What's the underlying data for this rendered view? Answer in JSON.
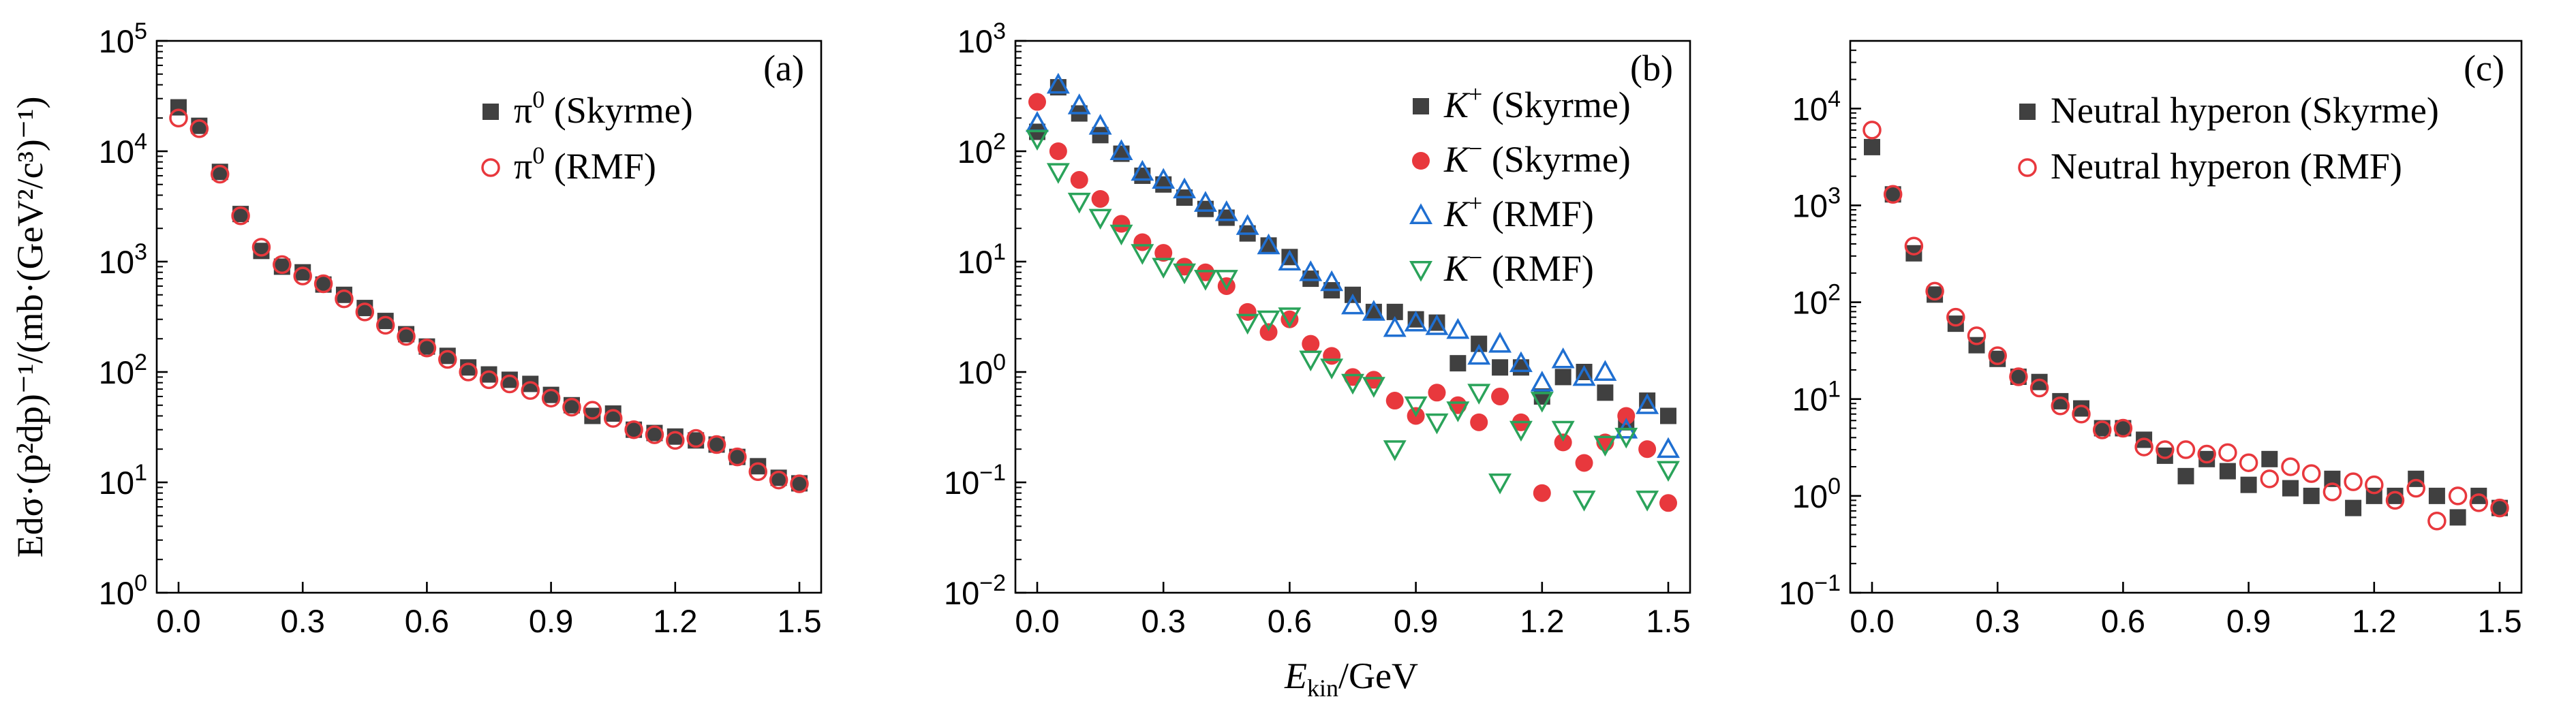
{
  "shared_xlabel": {
    "main": "E",
    "sub": "kin",
    "rest": "/GeV"
  },
  "ylabel_a": "Edσ·(p²dp)⁻¹/(mb·(GeV²/c³)⁻¹)",
  "colors": {
    "gray": "#404040",
    "red": "#e8383d",
    "blue": "#1f6fd1",
    "green": "#2aa35a"
  },
  "chart_data": [
    {
      "type": "scatter",
      "panel_label": "(a)",
      "yscale": "log",
      "xlim": [
        0.0,
        1.5
      ],
      "ylim": [
        1,
        100000
      ],
      "xticks": [
        "0.0",
        "0.3",
        "0.6",
        "0.9",
        "1.2",
        "1.5"
      ],
      "yticks": [
        {
          "base": "10",
          "exp": "0"
        },
        {
          "base": "10",
          "exp": "1"
        },
        {
          "base": "10",
          "exp": "2"
        },
        {
          "base": "10",
          "exp": "3"
        },
        {
          "base": "10",
          "exp": "4"
        },
        {
          "base": "10",
          "exp": "5"
        }
      ],
      "legend_position": "top-right",
      "x": [
        0.0,
        0.05,
        0.1,
        0.15,
        0.2,
        0.25,
        0.3,
        0.35,
        0.4,
        0.45,
        0.5,
        0.55,
        0.6,
        0.65,
        0.7,
        0.75,
        0.8,
        0.85,
        0.9,
        0.95,
        1.0,
        1.05,
        1.1,
        1.15,
        1.2,
        1.25,
        1.3,
        1.35,
        1.4,
        1.45,
        1.5
      ],
      "series": [
        {
          "name_main": "π",
          "name_sup": "0",
          "name_rest": " (Skyrme)",
          "marker": "square-filled",
          "color": "#404040",
          "values": [
            25000,
            17000,
            6500,
            2700,
            1250,
            900,
            800,
            620,
            500,
            380,
            290,
            220,
            170,
            140,
            110,
            95,
            85,
            78,
            62,
            50,
            40,
            42,
            30,
            28,
            26,
            24,
            22,
            17,
            14,
            11,
            9.8
          ]
        },
        {
          "name_main": "π",
          "name_sup": "0",
          "name_rest": " (RMF)",
          "marker": "circle-open",
          "color": "#e8383d",
          "values": [
            20000,
            16000,
            6200,
            2600,
            1350,
            940,
            740,
            630,
            460,
            350,
            265,
            210,
            165,
            130,
            100,
            85,
            78,
            68,
            58,
            48,
            45,
            38,
            30,
            27,
            24,
            25,
            22,
            17,
            12.5,
            10.5,
            9.7
          ]
        }
      ]
    },
    {
      "type": "scatter",
      "panel_label": "(b)",
      "yscale": "log",
      "xlim": [
        0.0,
        1.5
      ],
      "ylim": [
        0.01,
        1000
      ],
      "xticks": [
        "0.0",
        "0.3",
        "0.6",
        "0.9",
        "1.2",
        "1.5"
      ],
      "yticks": [
        {
          "base": "10",
          "exp": "−2"
        },
        {
          "base": "10",
          "exp": "−1"
        },
        {
          "base": "10",
          "exp": "0"
        },
        {
          "base": "10",
          "exp": "1"
        },
        {
          "base": "10",
          "exp": "2"
        },
        {
          "base": "10",
          "exp": "3"
        }
      ],
      "legend_position": "top-right",
      "x": [
        0.0,
        0.05,
        0.1,
        0.15,
        0.2,
        0.25,
        0.3,
        0.35,
        0.4,
        0.45,
        0.5,
        0.55,
        0.6,
        0.65,
        0.7,
        0.75,
        0.8,
        0.85,
        0.9,
        0.95,
        1.0,
        1.05,
        1.1,
        1.15,
        1.2,
        1.25,
        1.3,
        1.35,
        1.4,
        1.45,
        1.5
      ],
      "series": [
        {
          "name_main": "K",
          "name_sup": "+",
          "name_rest": " (Skyrme)",
          "marker": "square-filled",
          "color": "#404040",
          "values": [
            150,
            380,
            220,
            140,
            95,
            60,
            50,
            38,
            30,
            25,
            18,
            14,
            11,
            7,
            5.5,
            5,
            3.5,
            3.5,
            3,
            2.8,
            1.2,
            1.8,
            1.1,
            1.1,
            0.6,
            0.9,
            1.0,
            0.65,
            0.35,
            0.55,
            0.4
          ]
        },
        {
          "name_main": "K",
          "name_sup": "−",
          "name_rest": " (Skyrme)",
          "marker": "circle-filled",
          "color": "#e8383d",
          "values": [
            280,
            100,
            55,
            37,
            22,
            15,
            12,
            9,
            8,
            6,
            3.5,
            2.3,
            3,
            1.8,
            1.4,
            0.9,
            0.85,
            0.55,
            0.4,
            0.65,
            0.5,
            0.35,
            0.6,
            0.35,
            0.08,
            0.23,
            0.15,
            0.23,
            0.4,
            0.2,
            0.065
          ]
        },
        {
          "name_main": "K",
          "name_sup": "+",
          "name_rest": " (RMF)",
          "marker": "triangle-up-open",
          "color": "#1f6fd1",
          "values": [
            180,
            400,
            260,
            170,
            100,
            65,
            55,
            45,
            34,
            28,
            21,
            14,
            10,
            8,
            6.5,
            4,
            3.5,
            2.5,
            2.8,
            2.6,
            2.4,
            1.4,
            1.8,
            1.2,
            0.8,
            1.3,
            0.9,
            1.0,
            0.3,
            0.5,
            0.2
          ]
        },
        {
          "name_main": "K",
          "name_sup": "−",
          "name_rest": " (RMF)",
          "marker": "triangle-down-open",
          "color": "#2aa35a",
          "values": [
            130,
            65,
            35,
            25,
            18,
            12,
            9,
            8,
            7,
            7,
            2.8,
            3,
            3.2,
            1.3,
            1.1,
            0.8,
            0.75,
            0.2,
            0.5,
            0.35,
            0.45,
            0.65,
            0.1,
            0.3,
            0.55,
            0.3,
            0.07,
            0.22,
            0.26,
            0.07,
            0.13
          ]
        }
      ]
    },
    {
      "type": "scatter",
      "panel_label": "(c)",
      "yscale": "log",
      "xlim": [
        0.0,
        1.5
      ],
      "ylim": [
        0.1,
        50000
      ],
      "xticks": [
        "0.0",
        "0.3",
        "0.6",
        "0.9",
        "1.2",
        "1.5"
      ],
      "yticks": [
        {
          "base": "10",
          "exp": "−1"
        },
        {
          "base": "10",
          "exp": "0"
        },
        {
          "base": "10",
          "exp": "1"
        },
        {
          "base": "10",
          "exp": "2"
        },
        {
          "base": "10",
          "exp": "3"
        },
        {
          "base": "10",
          "exp": "4"
        }
      ],
      "legend_position": "top-right",
      "x": [
        0.0,
        0.05,
        0.1,
        0.15,
        0.2,
        0.25,
        0.3,
        0.35,
        0.4,
        0.45,
        0.5,
        0.55,
        0.6,
        0.65,
        0.7,
        0.75,
        0.8,
        0.85,
        0.9,
        0.95,
        1.0,
        1.05,
        1.1,
        1.15,
        1.2,
        1.25,
        1.3,
        1.35,
        1.4,
        1.45,
        1.5
      ],
      "series": [
        {
          "name_main": "Neutral hyperon",
          "name_sup": "",
          "name_rest": " (Skyrme)",
          "marker": "square-filled",
          "color": "#404040",
          "values": [
            4000,
            1300,
            320,
            120,
            60,
            36,
            26,
            17,
            15,
            9.5,
            8,
            5,
            5,
            3.8,
            2.6,
            1.6,
            2.4,
            1.8,
            1.3,
            2.4,
            1.2,
            1.0,
            1.5,
            0.75,
            1.0,
            1.0,
            1.5,
            1.0,
            0.6,
            1.0,
            0.75
          ]
        },
        {
          "name_main": "Neutral hyperon",
          "name_sup": "",
          "name_rest": " (RMF)",
          "marker": "circle-open",
          "color": "#e8383d",
          "values": [
            6000,
            1300,
            380,
            130,
            70,
            45,
            28,
            17,
            13,
            8.5,
            7,
            4.8,
            5,
            3.2,
            3,
            3,
            2.7,
            2.8,
            2.2,
            1.5,
            2,
            1.7,
            1.1,
            1.4,
            1.3,
            0.9,
            1.2,
            0.55,
            1.0,
            0.85,
            0.75
          ]
        }
      ]
    }
  ]
}
